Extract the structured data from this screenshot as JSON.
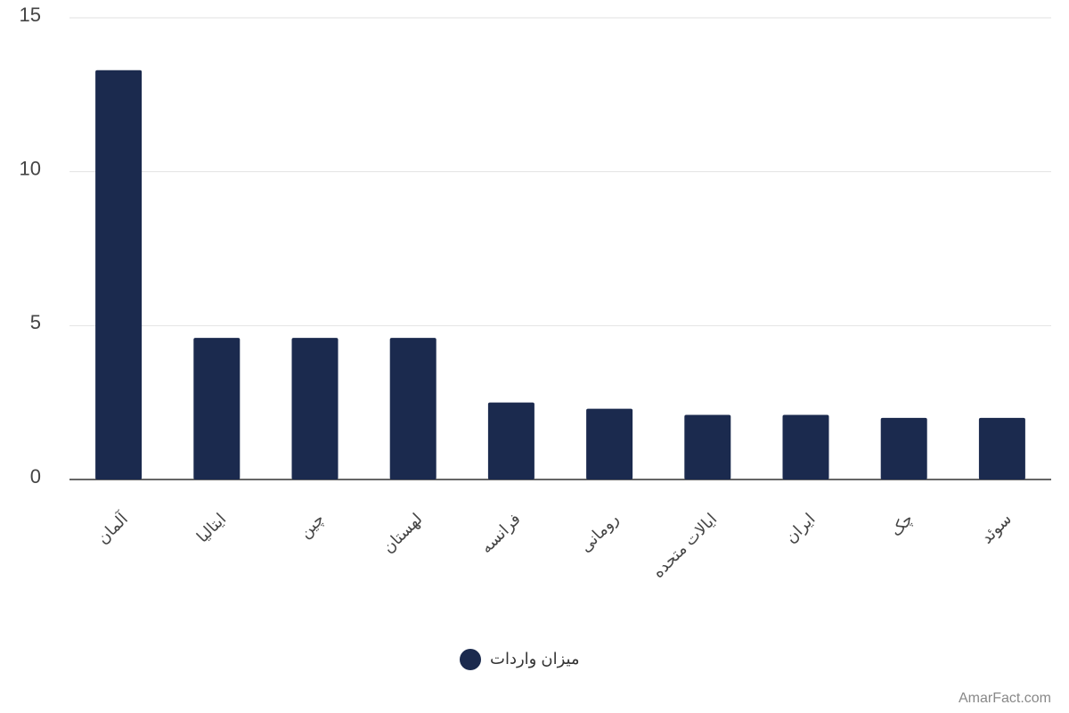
{
  "chart_data": {
    "type": "bar",
    "categories": [
      "آلمان",
      "ایتالیا",
      "چین",
      "لهستان",
      "فرانسه",
      "رومانی",
      "ایالات متحده",
      "ایران",
      "چک",
      "سوئد"
    ],
    "series": [
      {
        "name": "میزان واردات",
        "color": "#1b2a4e",
        "values": [
          13.3,
          4.6,
          4.6,
          4.6,
          2.5,
          2.3,
          2.1,
          2.1,
          2.0,
          2.0
        ]
      }
    ],
    "ylim": [
      0,
      15
    ],
    "yticks": [
      0,
      5,
      10,
      15
    ],
    "grid": true,
    "watermark": "AmarFact.com"
  }
}
